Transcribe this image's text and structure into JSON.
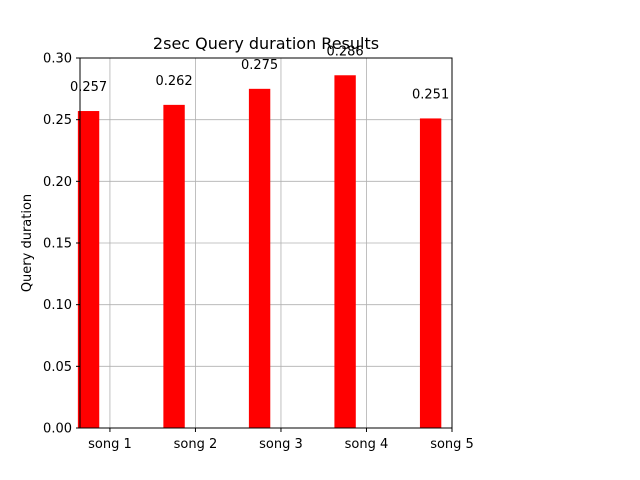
{
  "chart_data": {
    "type": "bar",
    "title": "2sec Query duration Results",
    "xlabel": "",
    "ylabel": "Query duration",
    "categories": [
      "song 1",
      "song 2",
      "song 3",
      "song 4",
      "song 5"
    ],
    "values": [
      0.257,
      0.262,
      0.275,
      0.286,
      0.251
    ],
    "data_labels": [
      "0.257",
      "0.262",
      "0.275",
      "0.286",
      "0.251"
    ],
    "ylim": [
      0,
      0.3
    ],
    "xlim": [
      -0.35,
      4.0
    ],
    "yticks": [
      "0.00",
      "0.05",
      "0.10",
      "0.15",
      "0.20",
      "0.25",
      "0.30"
    ],
    "ytick_values": [
      0,
      0.05,
      0.1,
      0.15,
      0.2,
      0.25,
      0.3
    ],
    "xtick_values": [
      0,
      1,
      2,
      3,
      4
    ],
    "bar_offset": -0.25,
    "bar_width": 0.25,
    "grid": true,
    "colors": {
      "bar": "#ff0000",
      "grid": "#b0b0b0",
      "axis": "#000000"
    }
  }
}
